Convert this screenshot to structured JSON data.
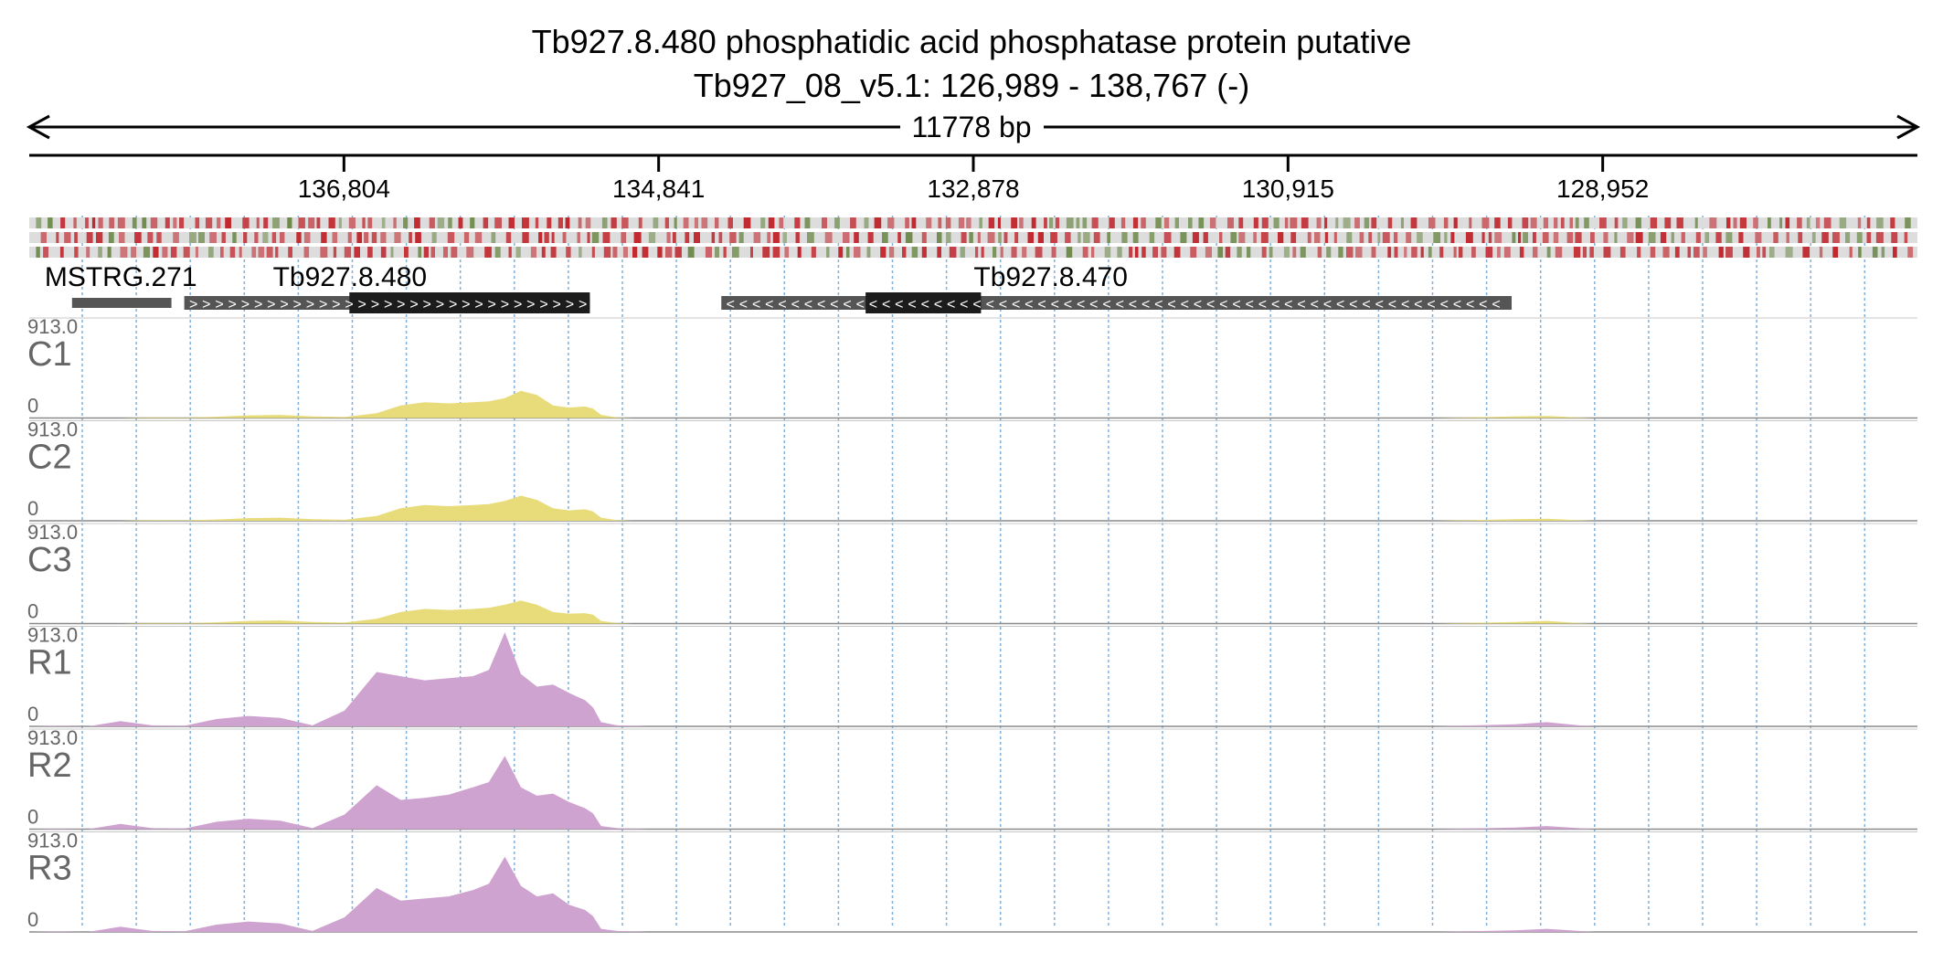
{
  "title": {
    "line1": "Tb927.8.480  phosphatidic acid phosphatase protein  putative",
    "line2": "Tb927_08_v5.1: 126,989 - 138,767 (-)"
  },
  "span_label": "11778 bp",
  "colors": {
    "axis": "#000000",
    "gridline": "#7fb0dc",
    "control_fill": "#e8dc7a",
    "rnai_fill": "#cfa3d0",
    "snp_bg": "#dddddd",
    "snp_red": "#c0262d",
    "snp_green": "#6e8a4a",
    "gene_thin": "#555555",
    "gene_cds": "#1c1c1c",
    "track_label": "#666666"
  },
  "chart_data": {
    "type": "area",
    "title": "Tb927.8.480  phosphatidic acid phosphatase protein  putative",
    "subtitle": "Tb927_08_v5.1: 126,989 - 138,767 (-)",
    "chromosome": "Tb927_08_v5.1",
    "strand": "-",
    "xlim": [
      138767,
      126989
    ],
    "x_ticks": [
      136804,
      134841,
      132878,
      130915,
      128952
    ],
    "x_tick_labels": [
      "136,804",
      "134,841",
      "132,878",
      "130,915",
      "128,952"
    ],
    "genes": [
      {
        "name": "MSTRG.271",
        "direction": "none",
        "start": 138500,
        "end": 137880,
        "cds": []
      },
      {
        "name": "Tb927.8.480",
        "direction": ">",
        "start": 137800,
        "end": 135270,
        "cds": [
          136770,
          135270
        ]
      },
      {
        "name": "Tb927.8.470",
        "direction": "<",
        "start": 134450,
        "end": 129520,
        "cds": [
          133550,
          132830
        ]
      }
    ],
    "ylim": [
      0,
      913.0
    ],
    "y_max_label": "913.0",
    "y_min_label": "0",
    "x": [
      138767,
      138600,
      138400,
      138200,
      138000,
      137800,
      137600,
      137400,
      137200,
      137000,
      136800,
      136600,
      136450,
      136300,
      136150,
      136000,
      135900,
      135800,
      135700,
      135600,
      135500,
      135400,
      135300,
      135250,
      135200,
      135100,
      135000,
      134900,
      134800,
      134700,
      134600,
      134500,
      134450,
      134400,
      134000,
      133000,
      132000,
      131000,
      130000,
      129500,
      129300,
      129100,
      129000,
      128500,
      127500,
      126989
    ],
    "series": [
      {
        "name": "C1",
        "group": "control",
        "values": [
          0,
          0,
          0,
          0,
          6,
          4,
          12,
          25,
          30,
          16,
          10,
          45,
          120,
          150,
          140,
          150,
          160,
          190,
          260,
          220,
          120,
          100,
          110,
          90,
          30,
          5,
          0,
          0,
          0,
          0,
          0,
          0,
          0,
          0,
          0,
          0,
          0,
          0,
          0,
          15,
          20,
          5,
          0,
          0,
          0,
          0
        ]
      },
      {
        "name": "C2",
        "group": "control",
        "values": [
          0,
          0,
          0,
          0,
          6,
          4,
          12,
          25,
          30,
          16,
          10,
          45,
          120,
          150,
          140,
          150,
          160,
          190,
          240,
          200,
          120,
          100,
          110,
          90,
          30,
          5,
          0,
          0,
          0,
          0,
          0,
          0,
          0,
          0,
          0,
          0,
          0,
          0,
          0,
          15,
          20,
          5,
          0,
          0,
          0,
          0
        ]
      },
      {
        "name": "C3",
        "group": "control",
        "values": [
          0,
          0,
          0,
          0,
          6,
          4,
          12,
          25,
          30,
          16,
          10,
          45,
          110,
          140,
          130,
          140,
          150,
          180,
          220,
          180,
          110,
          95,
          100,
          85,
          25,
          5,
          0,
          0,
          0,
          0,
          0,
          0,
          0,
          0,
          0,
          0,
          0,
          0,
          0,
          15,
          25,
          5,
          0,
          0,
          0,
          0
        ]
      },
      {
        "name": "R1",
        "group": "rnai",
        "values": [
          0,
          5,
          0,
          50,
          10,
          5,
          70,
          100,
          80,
          10,
          150,
          520,
          480,
          440,
          460,
          480,
          540,
          900,
          500,
          380,
          400,
          320,
          250,
          180,
          40,
          10,
          5,
          0,
          0,
          0,
          0,
          0,
          0,
          0,
          0,
          0,
          0,
          0,
          0,
          20,
          40,
          10,
          0,
          0,
          0,
          0
        ]
      },
      {
        "name": "R2",
        "group": "rnai",
        "values": [
          0,
          5,
          0,
          50,
          10,
          5,
          70,
          100,
          80,
          10,
          140,
          420,
          280,
          300,
          330,
          400,
          450,
          700,
          400,
          320,
          340,
          260,
          200,
          150,
          30,
          10,
          5,
          0,
          0,
          0,
          0,
          0,
          0,
          0,
          0,
          0,
          0,
          0,
          0,
          15,
          30,
          10,
          0,
          0,
          0,
          0
        ]
      },
      {
        "name": "R3",
        "group": "rnai",
        "values": [
          0,
          5,
          0,
          50,
          10,
          5,
          70,
          100,
          80,
          10,
          140,
          420,
          300,
          320,
          340,
          400,
          460,
          720,
          440,
          340,
          370,
          260,
          210,
          150,
          30,
          10,
          5,
          0,
          0,
          0,
          0,
          0,
          0,
          0,
          0,
          0,
          0,
          0,
          0,
          15,
          30,
          10,
          0,
          0,
          0,
          0
        ]
      }
    ]
  }
}
